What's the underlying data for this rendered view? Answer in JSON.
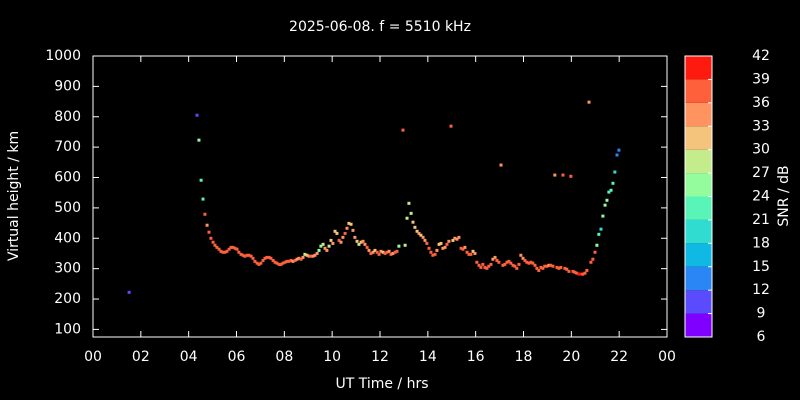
{
  "chart_data": {
    "type": "scatter",
    "title": "2025-06-08. f = 5510 kHz",
    "xlabel": "UT Time / hrs",
    "ylabel": "Virtual height / km",
    "xlim": [
      0,
      24
    ],
    "xticks": [
      {
        "value": 0,
        "label": "00"
      },
      {
        "value": 2,
        "label": "02"
      },
      {
        "value": 4,
        "label": "04"
      },
      {
        "value": 6,
        "label": "06"
      },
      {
        "value": 8,
        "label": "08"
      },
      10,
      12,
      14,
      16,
      18,
      20,
      22,
      {
        "value": 24,
        "label": "00"
      }
    ],
    "ylim": [
      75,
      1000
    ],
    "yticks": [
      100,
      200,
      300,
      400,
      500,
      600,
      700,
      800,
      900,
      1000
    ],
    "colorbar": {
      "label": "SNR / dB",
      "ticks": [
        6,
        9,
        12,
        15,
        18,
        21,
        24,
        27,
        30,
        33,
        36,
        39,
        42
      ],
      "colors": [
        "#8000ff",
        "#5a4cfc",
        "#2a86f4",
        "#10b8e4",
        "#30dcd0",
        "#58f4b8",
        "#94fc9c",
        "#c4ec8c",
        "#f4c47c",
        "#ff9460",
        "#ff603c",
        "#ff1a10"
      ]
    },
    "x": [
      1.51,
      4.35,
      4.43,
      4.52,
      4.6,
      4.68,
      4.77,
      4.85,
      4.93,
      5.02,
      5.1,
      5.18,
      5.27,
      5.35,
      5.43,
      5.52,
      5.6,
      5.69,
      5.77,
      5.85,
      5.94,
      6.02,
      6.1,
      6.19,
      6.27,
      6.35,
      6.44,
      6.52,
      6.61,
      6.69,
      6.77,
      6.86,
      6.94,
      7.02,
      7.11,
      7.19,
      7.27,
      7.36,
      7.44,
      7.53,
      7.61,
      7.69,
      7.78,
      7.86,
      7.94,
      8.03,
      8.11,
      8.19,
      8.28,
      8.36,
      8.45,
      8.53,
      8.61,
      8.7,
      8.78,
      8.86,
      8.95,
      9.03,
      9.11,
      9.2,
      9.28,
      9.37,
      9.45,
      9.53,
      9.62,
      9.7,
      9.78,
      9.87,
      9.95,
      10.03,
      10.12,
      10.2,
      10.29,
      10.37,
      10.45,
      10.54,
      10.62,
      10.7,
      10.79,
      10.87,
      10.95,
      11.04,
      11.12,
      11.21,
      11.29,
      11.37,
      11.46,
      11.54,
      11.62,
      11.71,
      11.79,
      11.88,
      11.96,
      12.04,
      12.13,
      12.21,
      12.29,
      12.38,
      12.46,
      12.54,
      12.63,
      12.71,
      12.79,
      12.96,
      13.05,
      13.13,
      13.21,
      13.3,
      13.38,
      13.46,
      13.55,
      13.63,
      13.71,
      13.8,
      13.88,
      13.96,
      14.05,
      14.13,
      14.21,
      14.3,
      14.38,
      14.47,
      14.55,
      14.63,
      14.72,
      14.8,
      14.88,
      14.97,
      15.05,
      15.13,
      15.22,
      15.3,
      15.39,
      15.47,
      15.55,
      15.64,
      15.72,
      15.8,
      15.89,
      15.97,
      16.05,
      16.14,
      16.22,
      16.3,
      16.39,
      16.47,
      16.55,
      16.64,
      16.72,
      16.81,
      16.89,
      16.97,
      17.06,
      17.14,
      17.22,
      17.31,
      17.39,
      17.47,
      17.56,
      17.64,
      17.72,
      17.81,
      17.89,
      17.98,
      18.06,
      18.14,
      18.23,
      18.31,
      18.39,
      18.48,
      18.56,
      18.64,
      18.73,
      18.81,
      18.89,
      18.98,
      19.06,
      19.14,
      19.23,
      19.31,
      19.4,
      19.48,
      19.56,
      19.65,
      19.73,
      19.81,
      19.9,
      19.98,
      20.07,
      20.15,
      20.23,
      20.32,
      20.4,
      20.48,
      20.57,
      20.65,
      20.74,
      20.82,
      20.9,
      20.99,
      21.07,
      21.15,
      21.24,
      21.32,
      21.41,
      21.49,
      21.57,
      21.66,
      21.74,
      21.82,
      21.91,
      21.99
    ],
    "y": [
      222,
      805,
      723,
      591,
      529,
      479,
      443,
      420,
      400,
      387,
      377,
      370,
      364,
      357,
      354,
      354,
      357,
      364,
      370,
      370,
      367,
      364,
      354,
      347,
      344,
      341,
      344,
      344,
      341,
      334,
      324,
      318,
      314,
      318,
      327,
      334,
      337,
      337,
      334,
      327,
      321,
      318,
      314,
      314,
      318,
      321,
      324,
      324,
      327,
      324,
      327,
      331,
      334,
      331,
      337,
      347,
      344,
      341,
      341,
      341,
      344,
      350,
      360,
      374,
      380,
      367,
      360,
      374,
      393,
      383,
      423,
      416,
      393,
      387,
      403,
      416,
      433,
      449,
      446,
      426,
      403,
      390,
      380,
      387,
      390,
      380,
      370,
      360,
      350,
      354,
      360,
      354,
      347,
      357,
      354,
      350,
      354,
      357,
      347,
      350,
      354,
      357,
      374,
      756,
      377,
      466,
      515,
      482,
      453,
      436,
      423,
      416,
      410,
      403,
      393,
      383,
      367,
      354,
      344,
      347,
      360,
      380,
      383,
      367,
      370,
      380,
      390,
      769,
      393,
      400,
      397,
      403,
      367,
      364,
      370,
      354,
      347,
      347,
      357,
      350,
      321,
      311,
      304,
      314,
      304,
      301,
      308,
      314,
      331,
      337,
      327,
      321,
      641,
      311,
      314,
      321,
      324,
      318,
      311,
      308,
      301,
      314,
      344,
      334,
      327,
      321,
      318,
      321,
      318,
      311,
      301,
      294,
      304,
      301,
      308,
      308,
      311,
      311,
      308,
      608,
      304,
      301,
      304,
      608,
      301,
      298,
      291,
      604,
      291,
      288,
      285,
      282,
      282,
      282,
      285,
      294,
      848,
      321,
      331,
      354,
      377,
      413,
      430,
      473,
      509,
      525,
      552,
      558,
      581,
      618,
      674,
      690
    ],
    "snr": [
      10,
      10,
      25,
      22,
      22,
      37,
      34,
      36,
      37,
      38,
      38,
      38,
      38,
      38,
      38,
      38,
      38,
      38,
      37,
      37,
      38,
      38,
      38,
      38,
      38,
      38,
      38,
      38,
      38,
      38,
      38,
      38,
      38,
      38,
      38,
      38,
      38,
      38,
      37,
      37,
      38,
      38,
      38,
      38,
      38,
      37,
      37,
      37,
      36,
      35,
      36,
      34,
      33,
      36,
      34,
      28,
      32,
      35,
      36,
      35,
      33,
      34,
      26,
      25,
      29,
      33,
      35,
      28,
      30,
      34,
      30,
      31,
      36,
      35,
      33,
      36,
      34,
      30,
      31,
      33,
      35,
      31,
      27,
      32,
      35,
      34,
      37,
      35,
      37,
      34,
      31,
      36,
      38,
      33,
      30,
      36,
      38,
      35,
      37,
      33,
      37,
      38,
      26,
      36,
      27,
      27,
      28,
      28,
      30,
      32,
      30,
      33,
      31,
      34,
      33,
      36,
      36,
      37,
      37,
      36,
      35,
      31,
      30,
      35,
      34,
      36,
      33,
      37,
      32,
      35,
      33,
      34,
      36,
      37,
      35,
      36,
      37,
      38,
      31,
      35,
      38,
      38,
      38,
      37,
      38,
      38,
      37,
      36,
      35,
      34,
      36,
      37,
      33,
      37,
      38,
      38,
      38,
      38,
      38,
      38,
      38,
      37,
      34,
      35,
      37,
      38,
      38,
      37,
      38,
      38,
      38,
      38,
      37,
      38,
      37,
      36,
      35,
      36,
      37,
      33,
      38,
      38,
      37,
      37,
      38,
      38,
      38,
      38,
      38,
      38,
      38,
      39,
      39,
      38,
      38,
      38,
      33,
      38,
      38,
      37,
      24,
      21,
      20,
      24,
      26,
      25,
      22,
      22,
      21,
      19,
      12,
      12
    ]
  }
}
